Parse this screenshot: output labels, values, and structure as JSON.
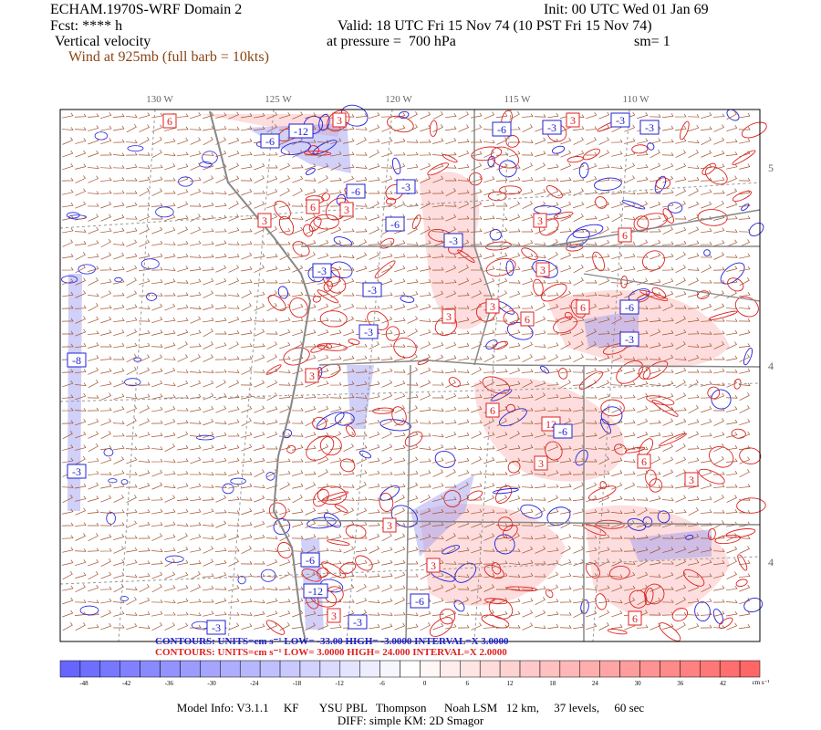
{
  "header": {
    "title": "ECHAM.1970S-WRF Domain 2",
    "init": "Init: 00 UTC Wed 01 Jan 69",
    "fcst": "Fcst: **** h",
    "valid": "Valid: 18 UTC Fri 15 Nov 74 (10 PST Fri 15 Nov 74)",
    "field": "Vertical velocity",
    "pressure": "at pressure =  700 hPa",
    "sm": "sm= 1",
    "wind": "Wind at 925mb (full barb = 10kts)"
  },
  "map": {
    "lon_labels": [
      "130 W",
      "125 W",
      "120 W",
      "115 W",
      "110 W"
    ],
    "lat_labels": [
      "5",
      "4",
      "4"
    ],
    "contour_labels": [
      "6",
      "3",
      "-3",
      "-6",
      "-12",
      "-6",
      "-3",
      "3",
      "-3",
      "-6",
      "3",
      "-3",
      "3",
      "6",
      "-6",
      "-3",
      "3",
      "6",
      "3",
      "-3",
      "3",
      "6",
      "-3",
      "-6",
      "-8",
      "3",
      "6",
      "-3",
      "3",
      "12",
      "-6",
      "-3",
      "3",
      "6",
      "-3",
      "3",
      "-12",
      "-6",
      "-3",
      "3",
      "6",
      "3",
      "-3",
      "-6",
      "3",
      "6"
    ]
  },
  "contours": {
    "line1": "CONTOURS:  UNITS=cm s⁻¹  LOW=  -33.00     HIGH=  -3.0000     INTERVAL=X 3.0000",
    "line2": "CONTOURS:  UNITS=cm s⁻¹  LOW=  3.0000     HIGH=  24.000     INTERVAL=X  2.0000"
  },
  "colorbar": {
    "ticks": [
      "-48",
      "-42",
      "-36",
      "-30",
      "-24",
      "-18",
      "-12",
      "-6",
      "0",
      "6",
      "12",
      "18",
      "24",
      "30",
      "36",
      "42"
    ],
    "unit": "cm s⁻¹"
  },
  "footer": {
    "line1": "Model Info: V3.1.1     KF       YSU PBL   Thompson      Noah LSM   12 km,     37 levels,     60 sec",
    "line2": "DIFF: simple KM: 2D Smagor"
  }
}
